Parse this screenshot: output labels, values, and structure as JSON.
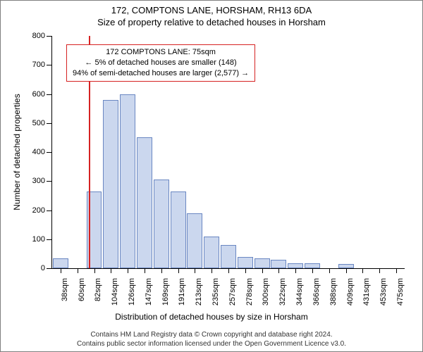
{
  "title_main": "172, COMPTONS LANE, HORSHAM, RH13 6DA",
  "title_sub": "Size of property relative to detached houses in Horsham",
  "y_axis_label": "Number of detached properties",
  "x_axis_label": "Distribution of detached houses by size in Horsham",
  "footer_line1": "Contains HM Land Registry data © Crown copyright and database right 2024.",
  "footer_line2": "Contains public sector information licensed under the Open Government Licence v3.0.",
  "chart": {
    "type": "histogram",
    "ylim": [
      0,
      800
    ],
    "ytick_step": 100,
    "bar_fill": "#cbd7ee",
    "bar_border": "#6a87c2",
    "ref_line_color": "#d62222",
    "ref_sqm": 75,
    "categories": [
      "38sqm",
      "60sqm",
      "82sqm",
      "104sqm",
      "126sqm",
      "147sqm",
      "169sqm",
      "191sqm",
      "213sqm",
      "235sqm",
      "257sqm",
      "278sqm",
      "300sqm",
      "322sqm",
      "344sqm",
      "366sqm",
      "388sqm",
      "409sqm",
      "431sqm",
      "453sqm",
      "475sqm"
    ],
    "values": [
      35,
      0,
      265,
      580,
      600,
      450,
      305,
      265,
      190,
      110,
      80,
      40,
      35,
      30,
      18,
      18,
      0,
      15,
      0,
      0,
      0
    ],
    "info_box": {
      "line1": "172 COMPTONS LANE: 75sqm",
      "line2": "← 5% of detached houses are smaller (148)",
      "line3": "94% of semi-detached houses are larger (2,577) →"
    }
  }
}
